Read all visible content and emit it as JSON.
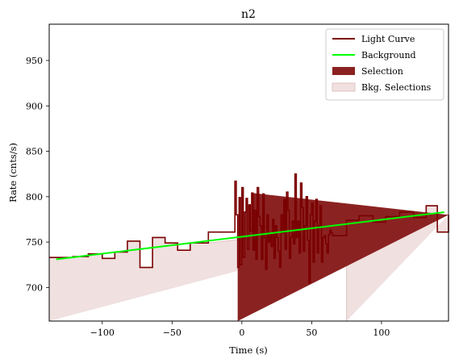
{
  "chart_data": {
    "type": "line",
    "title": "n2",
    "xlabel": "Time (s)",
    "ylabel": "Rate (cnts/s)",
    "xlim": [
      -138,
      148
    ],
    "ylim": [
      663,
      990
    ],
    "x_ticks": [
      -100,
      -50,
      0,
      50,
      100
    ],
    "x_tick_labels": [
      "−100",
      "−50",
      "0",
      "50",
      "100"
    ],
    "y_ticks": [
      700,
      750,
      800,
      850,
      900,
      950
    ],
    "y_tick_labels": [
      "700",
      "750",
      "800",
      "850",
      "900",
      "950"
    ],
    "grid": false,
    "legend_position": "top-right",
    "colors": {
      "light_curve": "#7a0000",
      "background": "#00ff00",
      "selection": "#8b2222",
      "bkg_selection": "#f0e0e0",
      "bkg_selection_edge": "#d8b8b8"
    },
    "legend": [
      {
        "label": "Light Curve",
        "kind": "line",
        "color": "#7a0000"
      },
      {
        "label": "Background",
        "kind": "line",
        "color": "#00ff00"
      },
      {
        "label": "Selection",
        "kind": "patch",
        "color": "#8b2222"
      },
      {
        "label": "Bkg. Selections",
        "kind": "patch",
        "color": "#f0e0e0"
      }
    ],
    "series": [
      {
        "name": "Light Curve",
        "kind": "step",
        "edges": [
          -138,
          -121,
          -110,
          -100,
          -91,
          -82,
          -73,
          -64,
          -55,
          -46,
          -37,
          -24,
          -5,
          -4,
          -3,
          -2,
          -1,
          0,
          1,
          2,
          3,
          4,
          5,
          6,
          7,
          8,
          9,
          10,
          11,
          12,
          13,
          14,
          15,
          16,
          17,
          18,
          19,
          20,
          21,
          22,
          23,
          24,
          25,
          26,
          27,
          28,
          29,
          30,
          31,
          32,
          33,
          34,
          35,
          36,
          37,
          38,
          39,
          40,
          41,
          42,
          43,
          44,
          45,
          46,
          47,
          48,
          49,
          50,
          51,
          52,
          53,
          54,
          55,
          56,
          57,
          58,
          59,
          60,
          61,
          62,
          63,
          64,
          65,
          75,
          84,
          94,
          103,
          113,
          123,
          132,
          140,
          148
        ],
        "values": [
          733,
          734,
          737,
          732,
          739,
          751,
          722,
          755,
          749,
          741,
          749,
          761,
          817,
          780,
          722,
          799,
          725,
          810,
          733,
          783,
          798,
          742,
          791,
          762,
          804,
          741,
          785,
          731,
          810,
          778,
          768,
          731,
          803,
          755,
          720,
          780,
          750,
          760,
          745,
          775,
          732,
          768,
          755,
          740,
          722,
          780,
          760,
          797,
          742,
          805,
          785,
          732,
          755,
          773,
          748,
          825,
          755,
          773,
          738,
          815,
          788,
          740,
          768,
          800,
          752,
          705,
          780,
          793,
          728,
          773,
          797,
          738,
          768,
          790,
          728,
          755,
          757,
          748,
          738,
          758,
          763,
          760,
          757,
          774,
          779,
          772,
          778,
          783,
          777,
          790,
          761,
          780
        ]
      },
      {
        "name": "Background",
        "kind": "line",
        "x": [
          -133,
          145
        ],
        "y": [
          731,
          783
        ]
      }
    ],
    "selection": [
      -3,
      8
    ],
    "bkg_selections": [
      [
        -138,
        -24
      ],
      [
        75,
        148
      ]
    ]
  }
}
